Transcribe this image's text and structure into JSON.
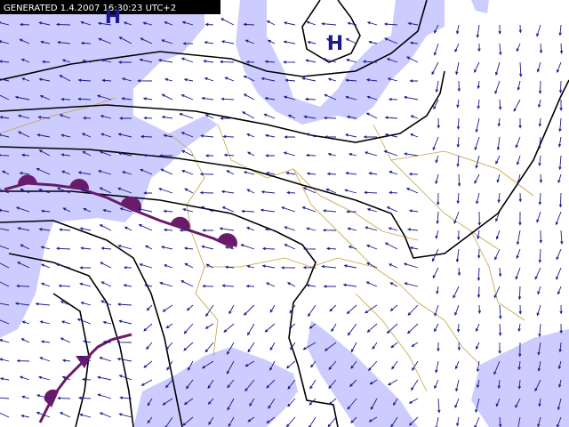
{
  "header": {
    "generated": "GENERATED 1.4.2007 16:30:23 UTC+2"
  },
  "pressure_centers": [
    {
      "label": "H"
    },
    {
      "label": "H"
    }
  ]
}
